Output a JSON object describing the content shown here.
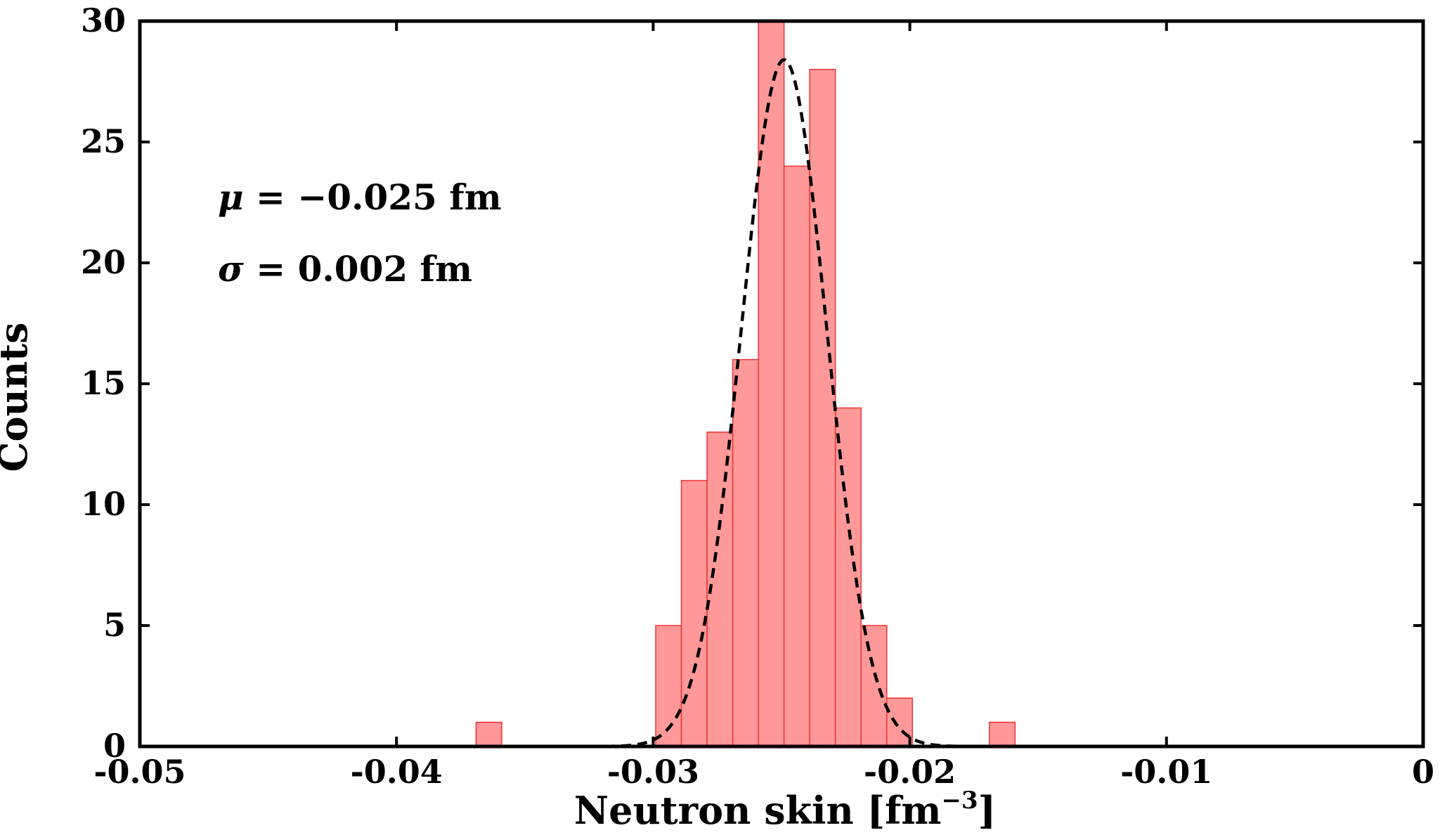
{
  "chart_data": {
    "type": "bar",
    "subtype": "histogram",
    "xlabel": "Neutron skin [fm",
    "xlabel_superscript": "−3",
    "xlabel_suffix": "]",
    "ylabel": "Counts",
    "xlim": [
      -0.05,
      0
    ],
    "ylim": [
      0,
      30
    ],
    "x_ticks": [
      -0.05,
      -0.04,
      -0.03,
      -0.02,
      -0.01,
      0
    ],
    "x_tick_labels": [
      "-0.05",
      "-0.04",
      "-0.03",
      "-0.02",
      "-0.01",
      "0"
    ],
    "y_ticks": [
      0,
      5,
      10,
      15,
      20,
      25,
      30
    ],
    "y_tick_labels": [
      "0",
      "5",
      "10",
      "15",
      "20",
      "25",
      "30"
    ],
    "bin_width": 0.001,
    "bin_starts": [
      -0.0369,
      -0.0299,
      -0.0289,
      -0.0279,
      -0.0269,
      -0.0259,
      -0.0249,
      -0.0239,
      -0.0229,
      -0.0219,
      -0.0209,
      -0.0169
    ],
    "counts": [
      1,
      5,
      11,
      13,
      16,
      30,
      24,
      28,
      14,
      5,
      2,
      1
    ],
    "bar_color": "#ff9999",
    "bar_edge_color": "#ee3333",
    "fit": {
      "type": "gaussian",
      "mu": -0.0249,
      "sigma": 0.00167,
      "amplitude": 28.4,
      "x_range": [
        -0.0325,
        -0.0172
      ],
      "line_color": "#000000",
      "line_style": "dashed"
    },
    "annotations": [
      {
        "symbol": "μ",
        "text": " = −0.025 fm"
      },
      {
        "symbol": "σ",
        "text": " = 0.002 fm"
      }
    ],
    "grid": false,
    "legend": "none"
  }
}
